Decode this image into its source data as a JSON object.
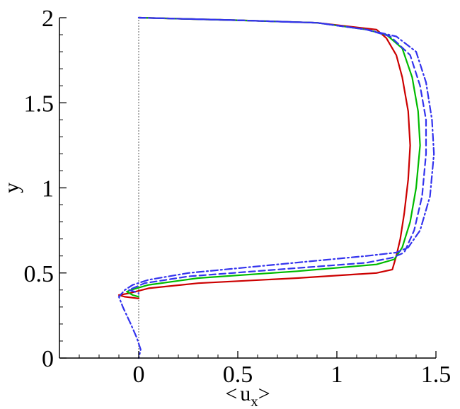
{
  "chart_data": {
    "type": "line",
    "xlabel": "<",
    "xlabel_var": "u",
    "xlabel_sub": "x",
    "xlabel_close": ">",
    "ylabel": "y",
    "xlim": [
      -0.4,
      1.5
    ],
    "ylim": [
      0,
      2
    ],
    "x_ticks": [
      0,
      0.5,
      1,
      1.5
    ],
    "x_tick_labels": [
      "0",
      "0.5",
      "1",
      "1.5"
    ],
    "y_ticks": [
      0,
      0.5,
      1,
      1.5,
      2
    ],
    "y_tick_labels": [
      "0",
      "0.5",
      "1",
      "1.5",
      "2"
    ],
    "grid": false,
    "reference_line": {
      "x": 0,
      "color": "#777777",
      "style": "dotted"
    },
    "series": [
      {
        "color": "#cc0000",
        "dash": "solid",
        "points": [
          [
            0,
            2.0
          ],
          [
            0.5,
            1.985
          ],
          [
            0.9,
            1.97
          ],
          [
            1.2,
            1.93
          ],
          [
            1.25,
            1.88
          ],
          [
            1.3,
            1.78
          ],
          [
            1.33,
            1.65
          ],
          [
            1.36,
            1.45
          ],
          [
            1.37,
            1.25
          ],
          [
            1.36,
            1.05
          ],
          [
            1.34,
            0.85
          ],
          [
            1.32,
            0.7
          ],
          [
            1.3,
            0.6
          ],
          [
            1.28,
            0.52
          ],
          [
            1.2,
            0.5
          ],
          [
            0.8,
            0.47
          ],
          [
            0.3,
            0.44
          ],
          [
            0.05,
            0.41
          ],
          [
            -0.05,
            0.38
          ],
          [
            -0.1,
            0.37
          ],
          [
            -0.07,
            0.36
          ],
          [
            0,
            0.35
          ]
        ]
      },
      {
        "color": "#00bb00",
        "dash": "solid",
        "points": [
          [
            0,
            2.0
          ],
          [
            0.5,
            1.985
          ],
          [
            0.9,
            1.97
          ],
          [
            1.15,
            1.93
          ],
          [
            1.25,
            1.9
          ],
          [
            1.33,
            1.82
          ],
          [
            1.38,
            1.65
          ],
          [
            1.41,
            1.45
          ],
          [
            1.42,
            1.25
          ],
          [
            1.4,
            1.0
          ],
          [
            1.37,
            0.8
          ],
          [
            1.33,
            0.65
          ],
          [
            1.29,
            0.58
          ],
          [
            1.2,
            0.55
          ],
          [
            0.8,
            0.51
          ],
          [
            0.3,
            0.47
          ],
          [
            0.05,
            0.43
          ],
          [
            -0.04,
            0.4
          ],
          [
            -0.06,
            0.39
          ],
          [
            -0.03,
            0.37
          ],
          [
            0,
            0.36
          ]
        ]
      },
      {
        "color": "#3333ee",
        "dash": "dashed",
        "points": [
          [
            0,
            2.0
          ],
          [
            0.5,
            1.985
          ],
          [
            0.9,
            1.97
          ],
          [
            1.15,
            1.93
          ],
          [
            1.27,
            1.89
          ],
          [
            1.37,
            1.78
          ],
          [
            1.42,
            1.6
          ],
          [
            1.45,
            1.4
          ],
          [
            1.45,
            1.2
          ],
          [
            1.43,
            0.95
          ],
          [
            1.39,
            0.75
          ],
          [
            1.34,
            0.62
          ],
          [
            1.28,
            0.59
          ],
          [
            1.15,
            0.56
          ],
          [
            0.7,
            0.52
          ],
          [
            0.25,
            0.48
          ],
          [
            0.03,
            0.44
          ],
          [
            -0.03,
            0.41
          ],
          [
            -0.05,
            0.4
          ],
          [
            -0.02,
            0.39
          ],
          [
            0,
            0.38
          ]
        ]
      },
      {
        "color": "#3333ee",
        "dash": "dashdot",
        "points": [
          [
            0,
            2.0
          ],
          [
            0.5,
            1.985
          ],
          [
            0.9,
            1.97
          ],
          [
            1.15,
            1.93
          ],
          [
            1.3,
            1.89
          ],
          [
            1.4,
            1.8
          ],
          [
            1.45,
            1.62
          ],
          [
            1.48,
            1.4
          ],
          [
            1.49,
            1.2
          ],
          [
            1.47,
            0.95
          ],
          [
            1.42,
            0.75
          ],
          [
            1.36,
            0.65
          ],
          [
            1.3,
            0.62
          ],
          [
            1.15,
            0.6
          ],
          [
            0.7,
            0.55
          ],
          [
            0.25,
            0.5
          ],
          [
            0.05,
            0.46
          ],
          [
            -0.03,
            0.43
          ],
          [
            -0.07,
            0.4
          ],
          [
            -0.1,
            0.36
          ],
          [
            -0.08,
            0.3
          ],
          [
            -0.04,
            0.2
          ],
          [
            -0.01,
            0.12
          ],
          [
            0.01,
            0.05
          ],
          [
            0,
            0.0
          ]
        ]
      }
    ]
  }
}
